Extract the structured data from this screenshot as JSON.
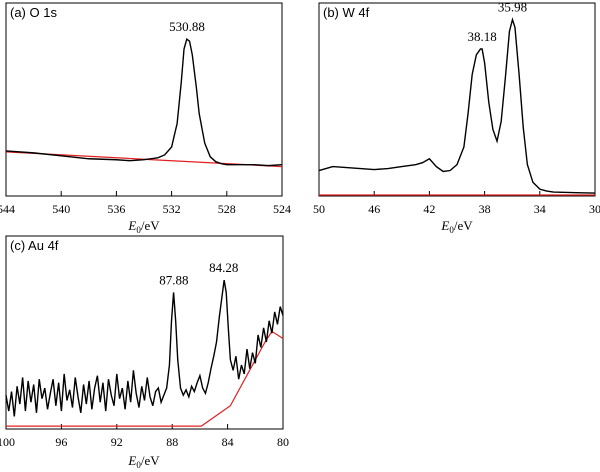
{
  "chart_data": [
    {
      "type": "line",
      "panel_label": "(a) O 1s",
      "xlabel_main": "E",
      "xlabel_sub": "0",
      "xlabel_unit": "/eV",
      "xlim": [
        544,
        524
      ],
      "xticks": [
        544,
        540,
        536,
        532,
        528,
        524
      ],
      "xtick_labels": [
        "544",
        "540",
        "536",
        "532",
        "528",
        "524"
      ],
      "ylim": [
        0,
        100
      ],
      "series": [
        {
          "role": "spectrum",
          "color": "#000000",
          "x": [
            544,
            542,
            540,
            538,
            536,
            535,
            534,
            533,
            532.5,
            532,
            531.6,
            531.3,
            531.1,
            530.9,
            530.7,
            530.5,
            530.2,
            530,
            529.6,
            529.2,
            528.8,
            528.4,
            528,
            527,
            526,
            525,
            524
          ],
          "y": [
            23,
            22,
            20.5,
            19,
            18.5,
            18,
            18.5,
            19.5,
            21,
            25,
            37,
            58,
            75,
            80,
            79,
            72,
            55,
            42,
            27,
            20,
            17.5,
            16.5,
            16,
            16,
            16,
            15.5,
            16
          ]
        },
        {
          "role": "background",
          "color": "#e02020",
          "x": [
            544,
            524
          ],
          "y": [
            22.5,
            15
          ]
        }
      ],
      "peaks": [
        {
          "label": "530.88",
          "x": 530.88,
          "y": 80
        }
      ]
    },
    {
      "type": "line",
      "panel_label": "(b) W 4f",
      "xlabel_main": "E",
      "xlabel_sub": "0",
      "xlabel_unit": "/eV",
      "xlim": [
        50,
        30
      ],
      "xticks": [
        50,
        46,
        42,
        38,
        34,
        30
      ],
      "xtick_labels": [
        "50",
        "46",
        "42",
        "38",
        "34",
        "30"
      ],
      "ylim": [
        0,
        100
      ],
      "series": [
        {
          "role": "spectrum",
          "color": "#000000",
          "x": [
            50,
            49.5,
            49,
            48,
            47,
            46,
            45,
            44,
            43,
            42.5,
            42,
            41.5,
            41,
            40.5,
            40,
            39.5,
            39.2,
            38.9,
            38.6,
            38.3,
            38.18,
            38.0,
            37.7,
            37.4,
            37.1,
            36.8,
            36.5,
            36.2,
            35.98,
            35.8,
            35.5,
            35.2,
            34.9,
            34.5,
            34,
            33.5,
            33,
            32,
            31,
            30
          ],
          "y": [
            13,
            14,
            15,
            14.5,
            14,
            13.5,
            14,
            15,
            16,
            17,
            19,
            15,
            12.5,
            13,
            16,
            25,
            42,
            62,
            72,
            75,
            75,
            68,
            48,
            34,
            28,
            38,
            60,
            84,
            90,
            86,
            62,
            35,
            16,
            7,
            3.5,
            2.5,
            2,
            1.8,
            1.6,
            1.5
          ]
        },
        {
          "role": "background",
          "color": "#e02020",
          "x": [
            50,
            30
          ],
          "y": [
            0.5,
            0.5
          ]
        }
      ],
      "peaks": [
        {
          "label": "38.18",
          "x": 38.18,
          "y": 75
        },
        {
          "label": "35.98",
          "x": 35.98,
          "y": 90
        }
      ]
    },
    {
      "type": "line",
      "panel_label": "(c) Au 4f",
      "xlabel_main": "E",
      "xlabel_sub": "0",
      "xlabel_unit": "/eV",
      "xlim": [
        100,
        80
      ],
      "xticks": [
        100,
        96,
        92,
        88,
        84,
        80
      ],
      "xtick_labels": [
        "100",
        "96",
        "92",
        "88",
        "84",
        "80"
      ],
      "ylim": [
        0,
        100
      ],
      "series": [
        {
          "role": "spectrum",
          "color": "#000000",
          "x": [
            100,
            99.8,
            99.6,
            99.4,
            99.2,
            99,
            98.8,
            98.6,
            98.4,
            98.2,
            98,
            97.8,
            97.6,
            97.4,
            97.2,
            97,
            96.8,
            96.6,
            96.4,
            96.2,
            96,
            95.8,
            95.6,
            95.4,
            95.2,
            95,
            94.8,
            94.6,
            94.4,
            94.2,
            94,
            93.8,
            93.6,
            93.4,
            93.2,
            93,
            92.8,
            92.6,
            92.4,
            92.2,
            92,
            91.8,
            91.6,
            91.4,
            91.2,
            91,
            90.8,
            90.6,
            90.4,
            90.2,
            90,
            89.8,
            89.6,
            89.4,
            89.2,
            89,
            88.8,
            88.6,
            88.4,
            88.2,
            88.05,
            87.9,
            87.75,
            87.6,
            87.4,
            87.2,
            87,
            86.8,
            86.6,
            86.4,
            86.2,
            86,
            85.8,
            85.6,
            85.4,
            85.2,
            85,
            84.8,
            84.6,
            84.4,
            84.25,
            84.1,
            83.95,
            83.8,
            83.6,
            83.4,
            83.2,
            83,
            82.8,
            82.6,
            82.4,
            82.2,
            82,
            81.8,
            81.6,
            81.4,
            81.2,
            81,
            80.8,
            80.6,
            80.4,
            80.2,
            80
          ],
          "y": [
            18,
            9,
            20,
            6,
            23,
            13,
            28,
            9,
            26,
            14,
            24,
            8,
            27,
            16,
            22,
            10,
            19,
            27,
            12,
            25,
            9,
            30,
            15,
            21,
            11,
            28,
            17,
            8,
            24,
            13,
            26,
            10,
            22,
            29,
            14,
            25,
            9,
            27,
            18,
            12,
            30,
            16,
            22,
            10,
            26,
            14,
            32,
            19,
            11,
            23,
            15,
            28,
            17,
            12,
            20,
            22,
            14,
            18,
            22,
            35,
            60,
            76,
            60,
            38,
            22,
            18,
            21,
            17,
            23,
            20,
            25,
            29,
            22,
            19,
            25,
            33,
            40,
            48,
            62,
            74,
            83,
            76,
            56,
            38,
            32,
            40,
            27,
            35,
            30,
            44,
            33,
            42,
            36,
            52,
            45,
            56,
            48,
            60,
            53,
            65,
            58,
            68,
            63
          ]
        },
        {
          "role": "background",
          "color": "#e02020",
          "x": [
            100,
            85.9,
            83.8,
            81.3,
            80.8,
            80
          ],
          "y": [
            0.5,
            0.5,
            12,
            48,
            54,
            50
          ]
        }
      ],
      "peaks": [
        {
          "label": "87.88",
          "x": 87.88,
          "y": 76
        },
        {
          "label": "84.28",
          "x": 84.28,
          "y": 83
        }
      ]
    }
  ]
}
